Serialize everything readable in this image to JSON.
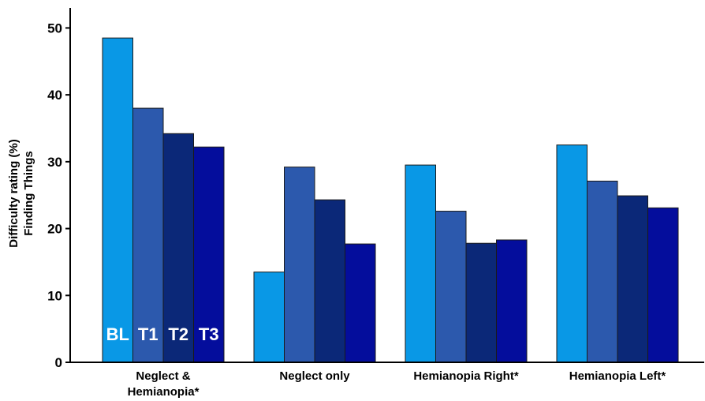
{
  "chart_data": {
    "type": "bar",
    "categories": [
      "Neglect &\nHemianopia*",
      "Neglect only",
      "Hemianopia Right*",
      "Hemianopia Left*"
    ],
    "series": [
      {
        "name": "BL",
        "color": "#0998e6",
        "values": [
          48.5,
          13.5,
          29.5,
          32.5
        ]
      },
      {
        "name": "T1",
        "color": "#2c59ad",
        "values": [
          38.0,
          29.2,
          22.6,
          27.1
        ]
      },
      {
        "name": "T2",
        "color": "#0b2878",
        "values": [
          34.2,
          24.3,
          17.8,
          24.9
        ]
      },
      {
        "name": "T3",
        "color": "#040d9c",
        "values": [
          32.2,
          17.7,
          18.3,
          23.1
        ]
      }
    ],
    "ylabel": [
      "Difficulty rating (%)",
      "Finding Things"
    ],
    "ylim": [
      0,
      53
    ],
    "yticks": [
      0,
      10,
      20,
      30,
      40,
      50
    ],
    "legend": "series labels inside first group bars",
    "grid": false
  }
}
